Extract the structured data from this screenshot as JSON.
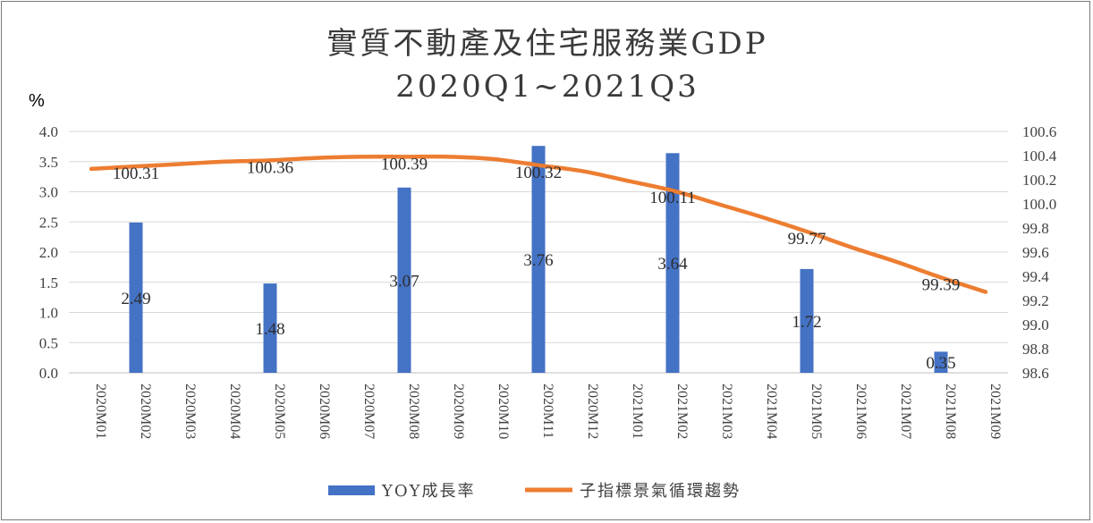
{
  "chart_data": {
    "type": "bar+line",
    "title_line1": "實質不動產及住宅服務業GDP",
    "title_line2": "2020Q1~2021Q3",
    "y_left_unit": "%",
    "categories": [
      "2020M01",
      "2020M02",
      "2020M03",
      "2020M04",
      "2020M05",
      "2020M06",
      "2020M07",
      "2020M08",
      "2020M09",
      "2020M10",
      "2020M11",
      "2020M12",
      "2021M01",
      "2021M02",
      "2021M03",
      "2021M04",
      "2021M05",
      "2021M06",
      "2021M07",
      "2021M08",
      "2021M09"
    ],
    "y_left_ticks": [
      "4.0",
      "3.5",
      "3.0",
      "2.5",
      "2.0",
      "1.5",
      "1.0",
      "0.5",
      "0.0"
    ],
    "y_left_range": [
      0,
      4
    ],
    "y_right_ticks": [
      "100.6",
      "100.4",
      "100.2",
      "100.0",
      "99.8",
      "99.6",
      "99.4",
      "99.2",
      "99.0",
      "98.8",
      "98.6"
    ],
    "y_right_range": [
      98.6,
      100.6
    ],
    "series": [
      {
        "name": "YOY成長率",
        "type": "bar",
        "axis": "left",
        "color": "#4472c4",
        "values": [
          null,
          2.49,
          null,
          null,
          1.48,
          null,
          null,
          3.07,
          null,
          null,
          3.76,
          null,
          null,
          3.64,
          null,
          null,
          1.72,
          null,
          null,
          0.35,
          null
        ],
        "labels": [
          null,
          "2.49",
          null,
          null,
          "1.48",
          null,
          null,
          "3.07",
          null,
          null,
          "3.76",
          null,
          null,
          "3.64",
          null,
          null,
          "1.72",
          null,
          null,
          "0.35",
          null
        ]
      },
      {
        "name": "子指標景氣循環趨勢",
        "type": "line",
        "axis": "right",
        "color": "#ed7d31",
        "values": [
          100.29,
          100.31,
          100.33,
          100.35,
          100.36,
          100.38,
          100.39,
          100.39,
          100.39,
          100.37,
          100.32,
          100.27,
          100.19,
          100.11,
          100.0,
          99.89,
          99.77,
          99.64,
          99.52,
          99.39,
          99.27
        ],
        "labels": [
          null,
          "100.31",
          null,
          null,
          "100.36",
          null,
          null,
          "100.39",
          null,
          null,
          "100.32",
          null,
          null,
          "100.11",
          null,
          null,
          "99.77",
          null,
          null,
          "99.39",
          null
        ]
      }
    ],
    "legend_position": "bottom",
    "grid": "horizontal"
  }
}
